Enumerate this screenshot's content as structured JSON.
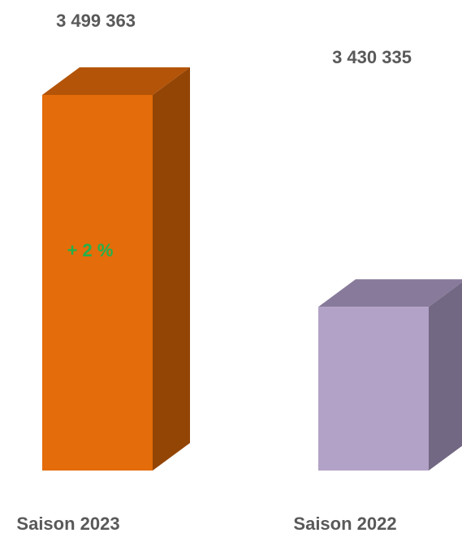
{
  "chart_data": {
    "type": "bar",
    "categories": [
      "Saison 2023",
      "Saison 2022"
    ],
    "values": [
      3499363,
      3430335
    ],
    "value_labels": [
      "3 499 363",
      "3 430 335"
    ],
    "annotation": "+ 2 %",
    "colors": {
      "bars_front": [
        "#e46c0a",
        "#b3a2c7"
      ],
      "bars_side": [
        "#934505",
        "#726883"
      ],
      "bars_top": [
        "#b45408",
        "#877a9a"
      ],
      "labels": "#595959",
      "annotation": "#22b14c"
    },
    "grid": false,
    "legend": "none"
  }
}
